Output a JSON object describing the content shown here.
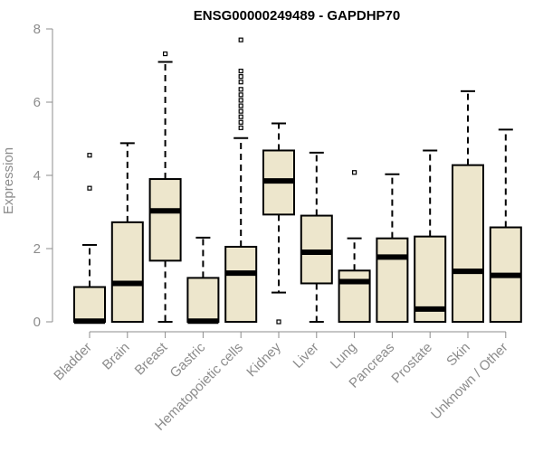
{
  "chart_data": {
    "type": "boxplot",
    "title": "ENSG00000249489 - GAPDHP70",
    "ylabel": "Expression",
    "xlabel": "",
    "ylim": [
      0,
      8
    ],
    "yticks": [
      0,
      2,
      4,
      6,
      8
    ],
    "grid": false,
    "box_fill": "#ede6cc",
    "box_stroke": "#000000",
    "axis_color": "#8c8c8c",
    "categories": [
      "Bladder",
      "Brain",
      "Breast",
      "Gastric",
      "Hematopoietic cells",
      "Kidney",
      "Liver",
      "Lung",
      "Pancreas",
      "Prostate",
      "Skin",
      "Unknown / Other"
    ],
    "boxes": [
      {
        "min": 0,
        "q1": 0,
        "median": 0.02,
        "q3": 0.95,
        "max": 2.1,
        "outliers": [
          3.65,
          4.55
        ]
      },
      {
        "min": 0,
        "q1": 0,
        "median": 1.05,
        "q3": 2.72,
        "max": 4.88,
        "outliers": []
      },
      {
        "min": 0,
        "q1": 1.67,
        "median": 3.03,
        "q3": 3.9,
        "max": 7.1,
        "outliers": [
          7.32
        ]
      },
      {
        "min": 0,
        "q1": 0,
        "median": 0.02,
        "q3": 1.2,
        "max": 2.3,
        "outliers": []
      },
      {
        "min": 0,
        "q1": 0,
        "median": 1.33,
        "q3": 2.05,
        "max": 5.02,
        "outliers": [
          5.3,
          5.45,
          5.6,
          5.75,
          5.9,
          6.05,
          6.2,
          6.35,
          6.55,
          6.7,
          6.85,
          7.7
        ]
      },
      {
        "min": 0.8,
        "q1": 2.93,
        "median": 3.85,
        "q3": 4.68,
        "max": 5.42,
        "outliers": [
          0
        ]
      },
      {
        "min": 0,
        "q1": 1.05,
        "median": 1.9,
        "q3": 2.9,
        "max": 4.62,
        "outliers": []
      },
      {
        "min": 0,
        "q1": 0,
        "median": 1.1,
        "q3": 1.4,
        "max": 2.28,
        "outliers": [
          4.08
        ]
      },
      {
        "min": 0,
        "q1": 0,
        "median": 1.77,
        "q3": 2.28,
        "max": 4.03,
        "outliers": []
      },
      {
        "min": 0,
        "q1": 0,
        "median": 0.35,
        "q3": 2.33,
        "max": 4.68,
        "outliers": []
      },
      {
        "min": 0,
        "q1": 0,
        "median": 1.38,
        "q3": 4.28,
        "max": 6.3,
        "outliers": []
      },
      {
        "min": 0,
        "q1": 0,
        "median": 1.27,
        "q3": 2.58,
        "max": 5.25,
        "outliers": []
      }
    ]
  }
}
